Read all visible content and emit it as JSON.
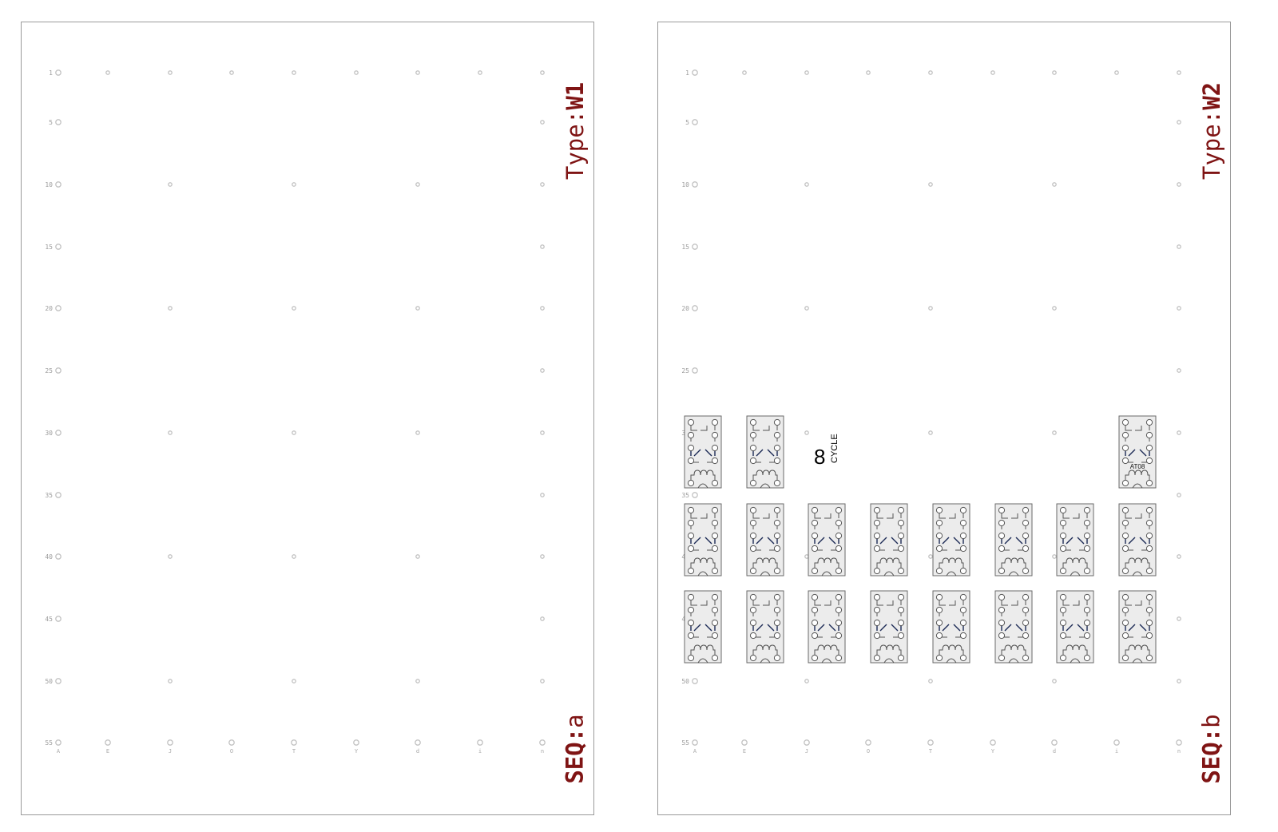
{
  "panels": [
    {
      "id": "a",
      "type_key": "Type:",
      "type_value": "W1",
      "seq_key": "SEQ:",
      "seq_value": "a",
      "row_labels": [
        "1",
        "5",
        "10",
        "15",
        "20",
        "25",
        "30",
        "35",
        "40",
        "45",
        "50",
        "55"
      ],
      "column_labels": [
        "A",
        "E",
        "J",
        "O",
        "T",
        "Y",
        "d",
        "i",
        "n"
      ],
      "relays": [],
      "annotation": null
    },
    {
      "id": "b",
      "type_key": "Type:",
      "type_value": "W2",
      "seq_key": "SEQ:",
      "seq_value": "b",
      "row_labels": [
        "1",
        "5",
        "10",
        "15",
        "20",
        "25",
        "30",
        "35",
        "40",
        "45",
        "50",
        "55"
      ],
      "column_labels": [
        "A",
        "E",
        "J",
        "O",
        "T",
        "Y",
        "d",
        "i",
        "n"
      ],
      "relays": [
        {
          "row": 0,
          "col": 0,
          "tag": ""
        },
        {
          "row": 0,
          "col": 1,
          "tag": ""
        },
        {
          "row": 0,
          "col": 7,
          "tag": "AT08"
        },
        {
          "row": 1,
          "col": 0,
          "tag": ""
        },
        {
          "row": 1,
          "col": 1,
          "tag": ""
        },
        {
          "row": 1,
          "col": 2,
          "tag": ""
        },
        {
          "row": 1,
          "col": 3,
          "tag": ""
        },
        {
          "row": 1,
          "col": 4,
          "tag": ""
        },
        {
          "row": 1,
          "col": 5,
          "tag": ""
        },
        {
          "row": 1,
          "col": 6,
          "tag": ""
        },
        {
          "row": 1,
          "col": 7,
          "tag": ""
        },
        {
          "row": 2,
          "col": 0,
          "tag": ""
        },
        {
          "row": 2,
          "col": 1,
          "tag": ""
        },
        {
          "row": 2,
          "col": 2,
          "tag": ""
        },
        {
          "row": 2,
          "col": 3,
          "tag": ""
        },
        {
          "row": 2,
          "col": 4,
          "tag": ""
        },
        {
          "row": 2,
          "col": 5,
          "tag": ""
        },
        {
          "row": 2,
          "col": 6,
          "tag": ""
        },
        {
          "row": 2,
          "col": 7,
          "tag": ""
        }
      ],
      "annotation": {
        "number": "8",
        "word": "CYCLE"
      }
    }
  ],
  "colors": {
    "border": "#9a9a9a",
    "grid_dot": "#c2c2c2",
    "label_red": "#7f1414",
    "relay_fill": "#ececec",
    "relay_arm": "#1c2a55"
  }
}
